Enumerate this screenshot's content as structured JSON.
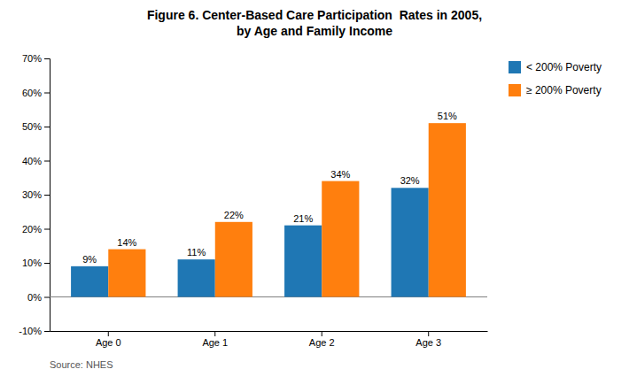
{
  "chart_data": {
    "type": "bar",
    "title": "Figure 6. Center-Based Care Participation  Rates in 2005,\nby Age and Family Income",
    "source": "Source: NHES",
    "categories": [
      "Age 0",
      "Age 1",
      "Age 2",
      "Age 3"
    ],
    "series": [
      {
        "name": "< 200% Poverty",
        "values": [
          0.09,
          0.11,
          0.21,
          0.32
        ],
        "value_labels": [
          "9%",
          "11%",
          "21%",
          "32%"
        ]
      },
      {
        "name": "≥ 200% Poverty",
        "values": [
          0.14,
          0.22,
          0.34,
          0.51
        ],
        "value_labels": [
          "14%",
          "22%",
          "34%",
          "51%"
        ]
      }
    ],
    "ylim": [
      -0.1,
      0.7
    ],
    "yticks": [
      {
        "value": -0.1,
        "label": "-10%"
      },
      {
        "value": 0.0,
        "label": "0%"
      },
      {
        "value": 0.1,
        "label": "10%"
      },
      {
        "value": 0.2,
        "label": "20%"
      },
      {
        "value": 0.3,
        "label": "30%"
      },
      {
        "value": 0.4,
        "label": "40%"
      },
      {
        "value": 0.5,
        "label": "50%"
      },
      {
        "value": 0.6,
        "label": "60%"
      },
      {
        "value": 0.7,
        "label": "70%"
      }
    ],
    "grid": false,
    "legend": "right",
    "data_labels": true
  }
}
